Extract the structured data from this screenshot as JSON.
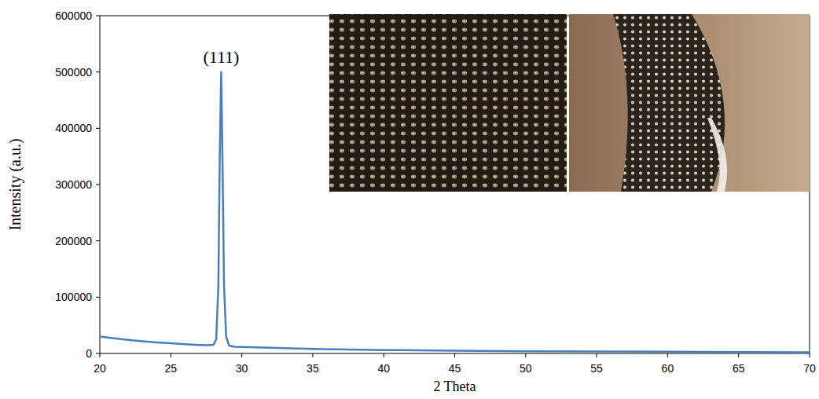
{
  "chart_data": {
    "type": "line",
    "x_label": "2 Theta",
    "y_label": "Intensity (a.u.)",
    "annotations": [
      {
        "text": "(111)",
        "x": 28.55
      }
    ],
    "x": [
      20,
      21,
      22,
      23,
      24,
      25,
      26,
      27,
      27.5,
      28,
      28.2,
      28.35,
      28.45,
      28.55,
      28.65,
      28.75,
      28.9,
      29.1,
      29.5,
      30,
      32,
      35,
      40,
      45,
      50,
      55,
      60,
      65,
      70
    ],
    "values": [
      30000,
      27000,
      24000,
      21500,
      19500,
      18000,
      16500,
      15000,
      14500,
      15500,
      25000,
      120000,
      350000,
      500000,
      330000,
      120000,
      30000,
      14000,
      12000,
      11500,
      10000,
      8000,
      6000,
      5000,
      4000,
      3500,
      3000,
      2500,
      2000
    ],
    "color": "#4a7ebb",
    "xlim": [
      20,
      70
    ],
    "xticks": [
      20,
      25,
      30,
      35,
      40,
      45,
      50,
      55,
      60,
      65,
      70
    ],
    "ylim": [
      0,
      600000
    ],
    "yticks": [
      0,
      100000,
      200000,
      300000,
      400000,
      500000,
      600000
    ],
    "grid": false
  }
}
